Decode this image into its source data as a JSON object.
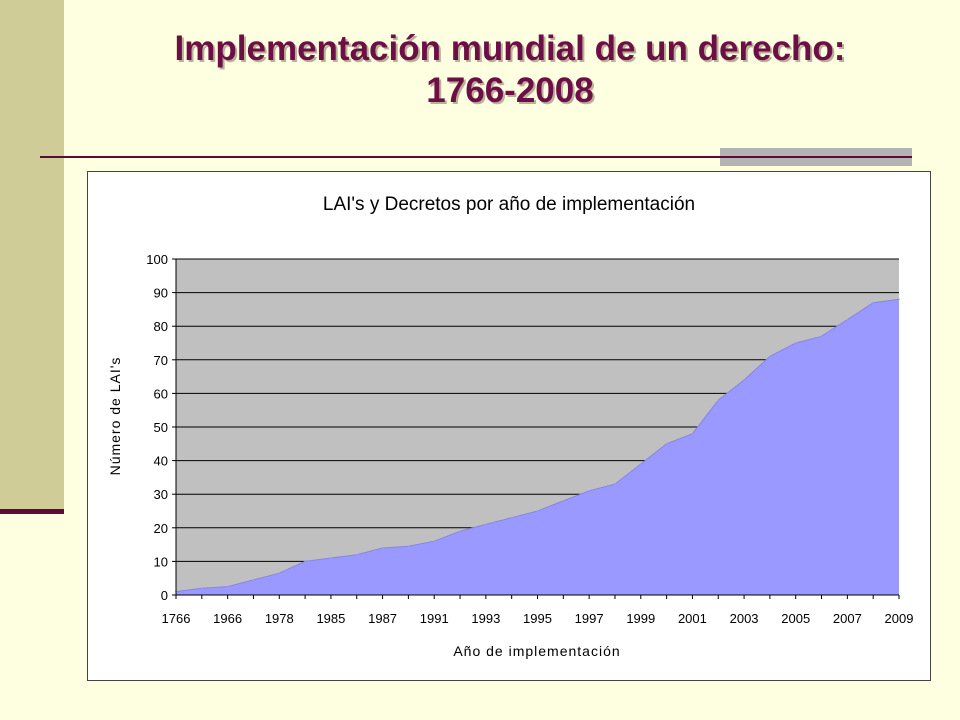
{
  "slide": {
    "title_line1": "Implementación mundial de un derecho:",
    "title_line2": "1766-2008"
  },
  "colors": {
    "title": "#6b0f45",
    "accent_line": "#5c0a3a",
    "side_band": "#cfcc98",
    "background": "#fefee0",
    "plot_area": "#c0c0c0",
    "series_fill": "#9999ff"
  },
  "chart_data": {
    "type": "area",
    "title": "LAI's y Decretos por año de implementación",
    "xlabel": "Año de implementación",
    "ylabel": "Número de LAI's",
    "ylim": [
      0,
      100
    ],
    "yticks": [
      0,
      10,
      20,
      30,
      40,
      50,
      60,
      70,
      80,
      90,
      100
    ],
    "grid": true,
    "legend": "none",
    "x": [
      "1766",
      "",
      "1966",
      "",
      "1978",
      "",
      "1985",
      "",
      "1987",
      "",
      "1991",
      "",
      "1993",
      "",
      "1995",
      "",
      "1997",
      "",
      "1999",
      "",
      "2001",
      "",
      "2003",
      "",
      "2005",
      "",
      "2007",
      "",
      "2009"
    ],
    "series": [
      {
        "values": [
          1,
          2,
          2.5,
          4.5,
          6.5,
          10,
          11,
          12,
          14,
          14.5,
          16,
          19,
          21,
          23,
          25,
          28,
          31,
          33,
          39,
          45,
          48,
          58,
          64,
          71,
          75,
          77,
          82,
          87,
          88
        ]
      }
    ]
  }
}
